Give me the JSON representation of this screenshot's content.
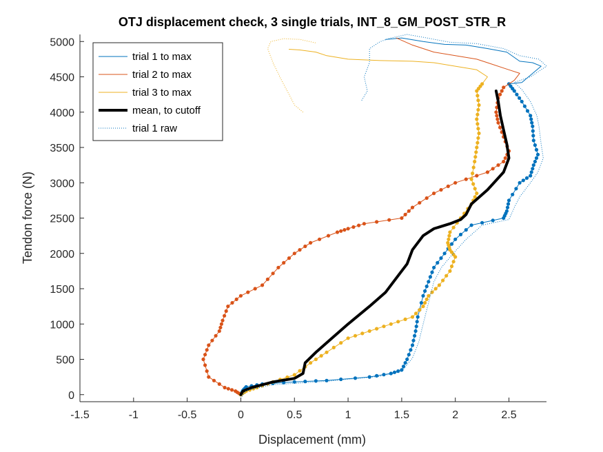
{
  "chart_data": {
    "type": "line",
    "title": "OTJ displacement check, 3 single trials, INT_8_GM_POST_STR_R",
    "xlabel": "Displacement (mm)",
    "ylabel": "Tendon force (N)",
    "xlim": [
      -1.5,
      2.85
    ],
    "ylim": [
      -100,
      5100
    ],
    "xticks": [
      -1.5,
      -1,
      -0.5,
      0,
      0.5,
      1,
      1.5,
      2,
      2.5
    ],
    "xtick_labels": [
      "-1.5",
      "-1",
      "-0.5",
      "0",
      "0.5",
      "1",
      "1.5",
      "2",
      "2.5"
    ],
    "yticks": [
      0,
      500,
      1000,
      1500,
      2000,
      2500,
      3000,
      3500,
      4000,
      4500,
      5000
    ],
    "ytick_labels": [
      "0",
      "500",
      "1000",
      "1500",
      "2000",
      "2500",
      "3000",
      "3500",
      "4000",
      "4500",
      "5000"
    ],
    "grid": false,
    "legend_position": "top-left",
    "series": [
      {
        "name": "trial 1 to max",
        "color": "#0072BD",
        "style": "solid",
        "line_width": 1,
        "markers": "dots-below-4400",
        "points": [
          [
            0,
            0
          ],
          [
            0.02,
            60
          ],
          [
            0.05,
            110
          ],
          [
            0.2,
            150
          ],
          [
            0.5,
            180
          ],
          [
            0.8,
            200
          ],
          [
            1.2,
            250
          ],
          [
            1.4,
            300
          ],
          [
            1.5,
            350
          ],
          [
            1.55,
            500
          ],
          [
            1.6,
            700
          ],
          [
            1.63,
            900
          ],
          [
            1.65,
            1100
          ],
          [
            1.7,
            1400
          ],
          [
            1.75,
            1600
          ],
          [
            1.8,
            1800
          ],
          [
            1.9,
            2000
          ],
          [
            2.0,
            2200
          ],
          [
            2.15,
            2400
          ],
          [
            2.45,
            2500
          ],
          [
            2.48,
            2600
          ],
          [
            2.5,
            2750
          ],
          [
            2.6,
            3000
          ],
          [
            2.7,
            3100
          ],
          [
            2.73,
            3250
          ],
          [
            2.77,
            3400
          ],
          [
            2.73,
            3600
          ],
          [
            2.72,
            3800
          ],
          [
            2.7,
            3950
          ],
          [
            2.62,
            4150
          ],
          [
            2.55,
            4300
          ],
          [
            2.5,
            4400
          ],
          [
            2.62,
            4420
          ],
          [
            2.8,
            4650
          ],
          [
            2.72,
            4700
          ],
          [
            2.6,
            4720
          ],
          [
            2.48,
            4850
          ],
          [
            2.3,
            4900
          ],
          [
            2.1,
            4950
          ],
          [
            1.9,
            4960
          ],
          [
            1.7,
            5000
          ],
          [
            1.5,
            5050
          ],
          [
            1.35,
            5030
          ]
        ]
      },
      {
        "name": "trial 2 to max",
        "color": "#D95319",
        "style": "solid",
        "line_width": 1,
        "markers": "dots-below-4400",
        "points": [
          [
            0,
            0
          ],
          [
            -0.05,
            50
          ],
          [
            -0.15,
            100
          ],
          [
            -0.3,
            250
          ],
          [
            -0.35,
            500
          ],
          [
            -0.3,
            700
          ],
          [
            -0.2,
            900
          ],
          [
            -0.17,
            1050
          ],
          [
            -0.12,
            1250
          ],
          [
            0,
            1400
          ],
          [
            0.2,
            1550
          ],
          [
            0.35,
            1800
          ],
          [
            0.5,
            2000
          ],
          [
            0.65,
            2150
          ],
          [
            0.9,
            2300
          ],
          [
            1.0,
            2350
          ],
          [
            1.15,
            2420
          ],
          [
            1.5,
            2500
          ],
          [
            1.6,
            2650
          ],
          [
            1.8,
            2850
          ],
          [
            2.0,
            3000
          ],
          [
            2.3,
            3150
          ],
          [
            2.45,
            3300
          ],
          [
            2.5,
            3450
          ],
          [
            2.45,
            3650
          ],
          [
            2.4,
            3850
          ],
          [
            2.38,
            4000
          ],
          [
            2.4,
            4200
          ],
          [
            2.45,
            4350
          ],
          [
            2.55,
            4450
          ],
          [
            2.6,
            4550
          ],
          [
            2.5,
            4600
          ],
          [
            2.3,
            4700
          ],
          [
            2.2,
            4750
          ],
          [
            2.0,
            4800
          ],
          [
            1.8,
            4850
          ],
          [
            1.6,
            4950
          ],
          [
            1.45,
            5050
          ]
        ]
      },
      {
        "name": "trial 3 to max",
        "color": "#EDB120",
        "style": "solid",
        "line_width": 1,
        "markers": "dots-below-4400",
        "points": [
          [
            0,
            0
          ],
          [
            0.05,
            50
          ],
          [
            0.15,
            100
          ],
          [
            0.3,
            180
          ],
          [
            0.5,
            280
          ],
          [
            0.65,
            450
          ],
          [
            0.8,
            600
          ],
          [
            1.0,
            800
          ],
          [
            1.2,
            900
          ],
          [
            1.4,
            1000
          ],
          [
            1.6,
            1100
          ],
          [
            1.7,
            1250
          ],
          [
            1.75,
            1400
          ],
          [
            1.85,
            1550
          ],
          [
            1.95,
            1750
          ],
          [
            2.0,
            1950
          ],
          [
            1.95,
            2050
          ],
          [
            1.93,
            2150
          ],
          [
            1.95,
            2300
          ],
          [
            2.05,
            2500
          ],
          [
            2.15,
            2700
          ],
          [
            2.2,
            2850
          ],
          [
            2.15,
            3050
          ],
          [
            2.18,
            3300
          ],
          [
            2.2,
            3500
          ],
          [
            2.22,
            3700
          ],
          [
            2.2,
            3900
          ],
          [
            2.22,
            4100
          ],
          [
            2.2,
            4300
          ],
          [
            2.25,
            4400
          ],
          [
            2.3,
            4500
          ],
          [
            2.2,
            4600
          ],
          [
            2.0,
            4650
          ],
          [
            1.8,
            4700
          ],
          [
            1.6,
            4720
          ],
          [
            1.3,
            4730
          ],
          [
            1.0,
            4750
          ],
          [
            0.8,
            4800
          ],
          [
            0.7,
            4850
          ],
          [
            0.55,
            4880
          ],
          [
            0.45,
            4890
          ]
        ]
      },
      {
        "name": "mean, to cutoff",
        "color": "#000000",
        "style": "solid",
        "line_width": 4,
        "markers": "none",
        "points": [
          [
            0,
            0
          ],
          [
            0.02,
            50
          ],
          [
            0.1,
            100
          ],
          [
            0.3,
            180
          ],
          [
            0.5,
            230
          ],
          [
            0.58,
            300
          ],
          [
            0.6,
            450
          ],
          [
            0.7,
            600
          ],
          [
            0.85,
            800
          ],
          [
            1.0,
            1000
          ],
          [
            1.2,
            1250
          ],
          [
            1.35,
            1450
          ],
          [
            1.45,
            1650
          ],
          [
            1.55,
            1850
          ],
          [
            1.6,
            2050
          ],
          [
            1.7,
            2250
          ],
          [
            1.8,
            2350
          ],
          [
            1.95,
            2420
          ],
          [
            2.05,
            2480
          ],
          [
            2.1,
            2550
          ],
          [
            2.15,
            2700
          ],
          [
            2.3,
            2900
          ],
          [
            2.45,
            3150
          ],
          [
            2.5,
            3350
          ],
          [
            2.48,
            3550
          ],
          [
            2.45,
            3750
          ],
          [
            2.42,
            3950
          ],
          [
            2.4,
            4150
          ],
          [
            2.38,
            4300
          ]
        ]
      },
      {
        "name": "trial 1 raw",
        "color": "#0072BD",
        "style": "dotted",
        "line_width": 1,
        "markers": "none",
        "points": [
          [
            0,
            -50
          ],
          [
            0.05,
            60
          ],
          [
            0.3,
            140
          ],
          [
            0.8,
            190
          ],
          [
            1.3,
            260
          ],
          [
            1.5,
            330
          ],
          [
            1.6,
            520
          ],
          [
            1.66,
            750
          ],
          [
            1.7,
            1000
          ],
          [
            1.75,
            1300
          ],
          [
            1.8,
            1600
          ],
          [
            1.87,
            1800
          ],
          [
            1.98,
            2000
          ],
          [
            2.1,
            2200
          ],
          [
            2.25,
            2400
          ],
          [
            2.5,
            2480
          ],
          [
            2.55,
            2650
          ],
          [
            2.6,
            2800
          ],
          [
            2.7,
            3000
          ],
          [
            2.77,
            3150
          ],
          [
            2.82,
            3350
          ],
          [
            2.8,
            3550
          ],
          [
            2.78,
            3800
          ],
          [
            2.76,
            3950
          ],
          [
            2.7,
            4150
          ],
          [
            2.62,
            4320
          ],
          [
            2.55,
            4420
          ],
          [
            2.7,
            4500
          ],
          [
            2.85,
            4650
          ],
          [
            2.78,
            4750
          ],
          [
            2.6,
            4800
          ],
          [
            2.45,
            4900
          ],
          [
            2.2,
            4970
          ],
          [
            1.95,
            4990
          ],
          [
            1.7,
            5060
          ],
          [
            1.55,
            5100
          ],
          [
            1.4,
            5050
          ],
          [
            1.3,
            5000
          ],
          [
            1.2,
            4900
          ],
          [
            1.2,
            4700
          ],
          [
            1.15,
            4500
          ],
          [
            1.18,
            4300
          ],
          [
            1.12,
            4150
          ]
        ]
      },
      {
        "name": "",
        "color": "#EDB120",
        "style": "dotted",
        "line_width": 1,
        "markers": "none",
        "points": [
          [
            0.58,
            4000
          ],
          [
            0.5,
            4100
          ],
          [
            0.45,
            4250
          ],
          [
            0.38,
            4450
          ],
          [
            0.3,
            4700
          ],
          [
            0.25,
            4900
          ],
          [
            0.28,
            5000
          ],
          [
            0.4,
            5040
          ],
          [
            0.55,
            5030
          ],
          [
            0.7,
            4980
          ]
        ]
      }
    ],
    "legend": [
      {
        "label": "trial 1 to max",
        "color": "#0072BD",
        "style": "solid",
        "width": 1
      },
      {
        "label": "trial 2 to max",
        "color": "#D95319",
        "style": "solid",
        "width": 1
      },
      {
        "label": "trial 3 to max",
        "color": "#EDB120",
        "style": "solid",
        "width": 1
      },
      {
        "label": "mean, to cutoff",
        "color": "#000000",
        "style": "solid",
        "width": 4
      },
      {
        "label": "trial 1 raw",
        "color": "#0072BD",
        "style": "dotted",
        "width": 1
      }
    ]
  }
}
